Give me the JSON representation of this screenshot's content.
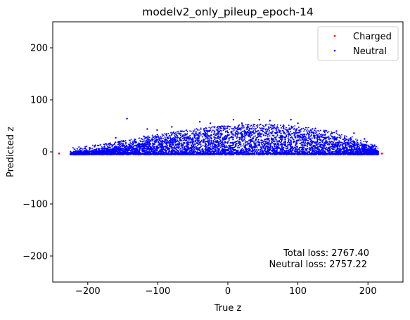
{
  "chart_data": {
    "type": "scatter",
    "title": "modelv2_only_pileup_epoch-14",
    "xlabel": "True z",
    "ylabel": "Predicted z",
    "xlim": [
      -250,
      250
    ],
    "ylim": [
      -250,
      250
    ],
    "xticks": [
      -200,
      -100,
      0,
      100,
      200
    ],
    "yticks": [
      -200,
      -100,
      0,
      100,
      200
    ],
    "xtick_labels": [
      "−200",
      "−100",
      "0",
      "100",
      "200"
    ],
    "ytick_labels": [
      "−200",
      "−100",
      "0",
      "100",
      "200"
    ],
    "grid": false,
    "legend_position": "top-right",
    "series": [
      {
        "name": "Charged",
        "color": "#ff0000",
        "points": [
          [
            -241,
            -3
          ],
          [
            220,
            -3
          ]
        ]
      },
      {
        "name": "Neutral",
        "color": "#0000ff",
        "envelope_x": [
          -225,
          -200,
          -175,
          -150,
          -125,
          -100,
          -75,
          -50,
          -25,
          0,
          25,
          50,
          75,
          100,
          125,
          150,
          175,
          200,
          215
        ],
        "envelope_ymax": [
          -2,
          2,
          6,
          12,
          18,
          24,
          29,
          34,
          38,
          41,
          43,
          44,
          43,
          40,
          35,
          28,
          20,
          10,
          0
        ],
        "ymin": -5,
        "outliers": [
          [
            -144,
            64
          ],
          [
            -170,
            15
          ],
          [
            -160,
            27
          ],
          [
            -133,
            24
          ],
          [
            -120,
            30
          ],
          [
            -115,
            44
          ],
          [
            -101,
            42
          ],
          [
            -80,
            48
          ],
          [
            -40,
            58
          ],
          [
            -25,
            55
          ],
          [
            8,
            62
          ],
          [
            20,
            55
          ],
          [
            45,
            62
          ],
          [
            60,
            60
          ],
          [
            90,
            62
          ],
          [
            100,
            55
          ],
          [
            125,
            45
          ],
          [
            140,
            41
          ],
          [
            155,
            40
          ],
          [
            180,
            36
          ],
          [
            195,
            25
          ],
          [
            205,
            10
          ]
        ]
      }
    ],
    "annotations": [
      "Total loss: 2767.40",
      "Neutral loss: 2757.22"
    ]
  }
}
